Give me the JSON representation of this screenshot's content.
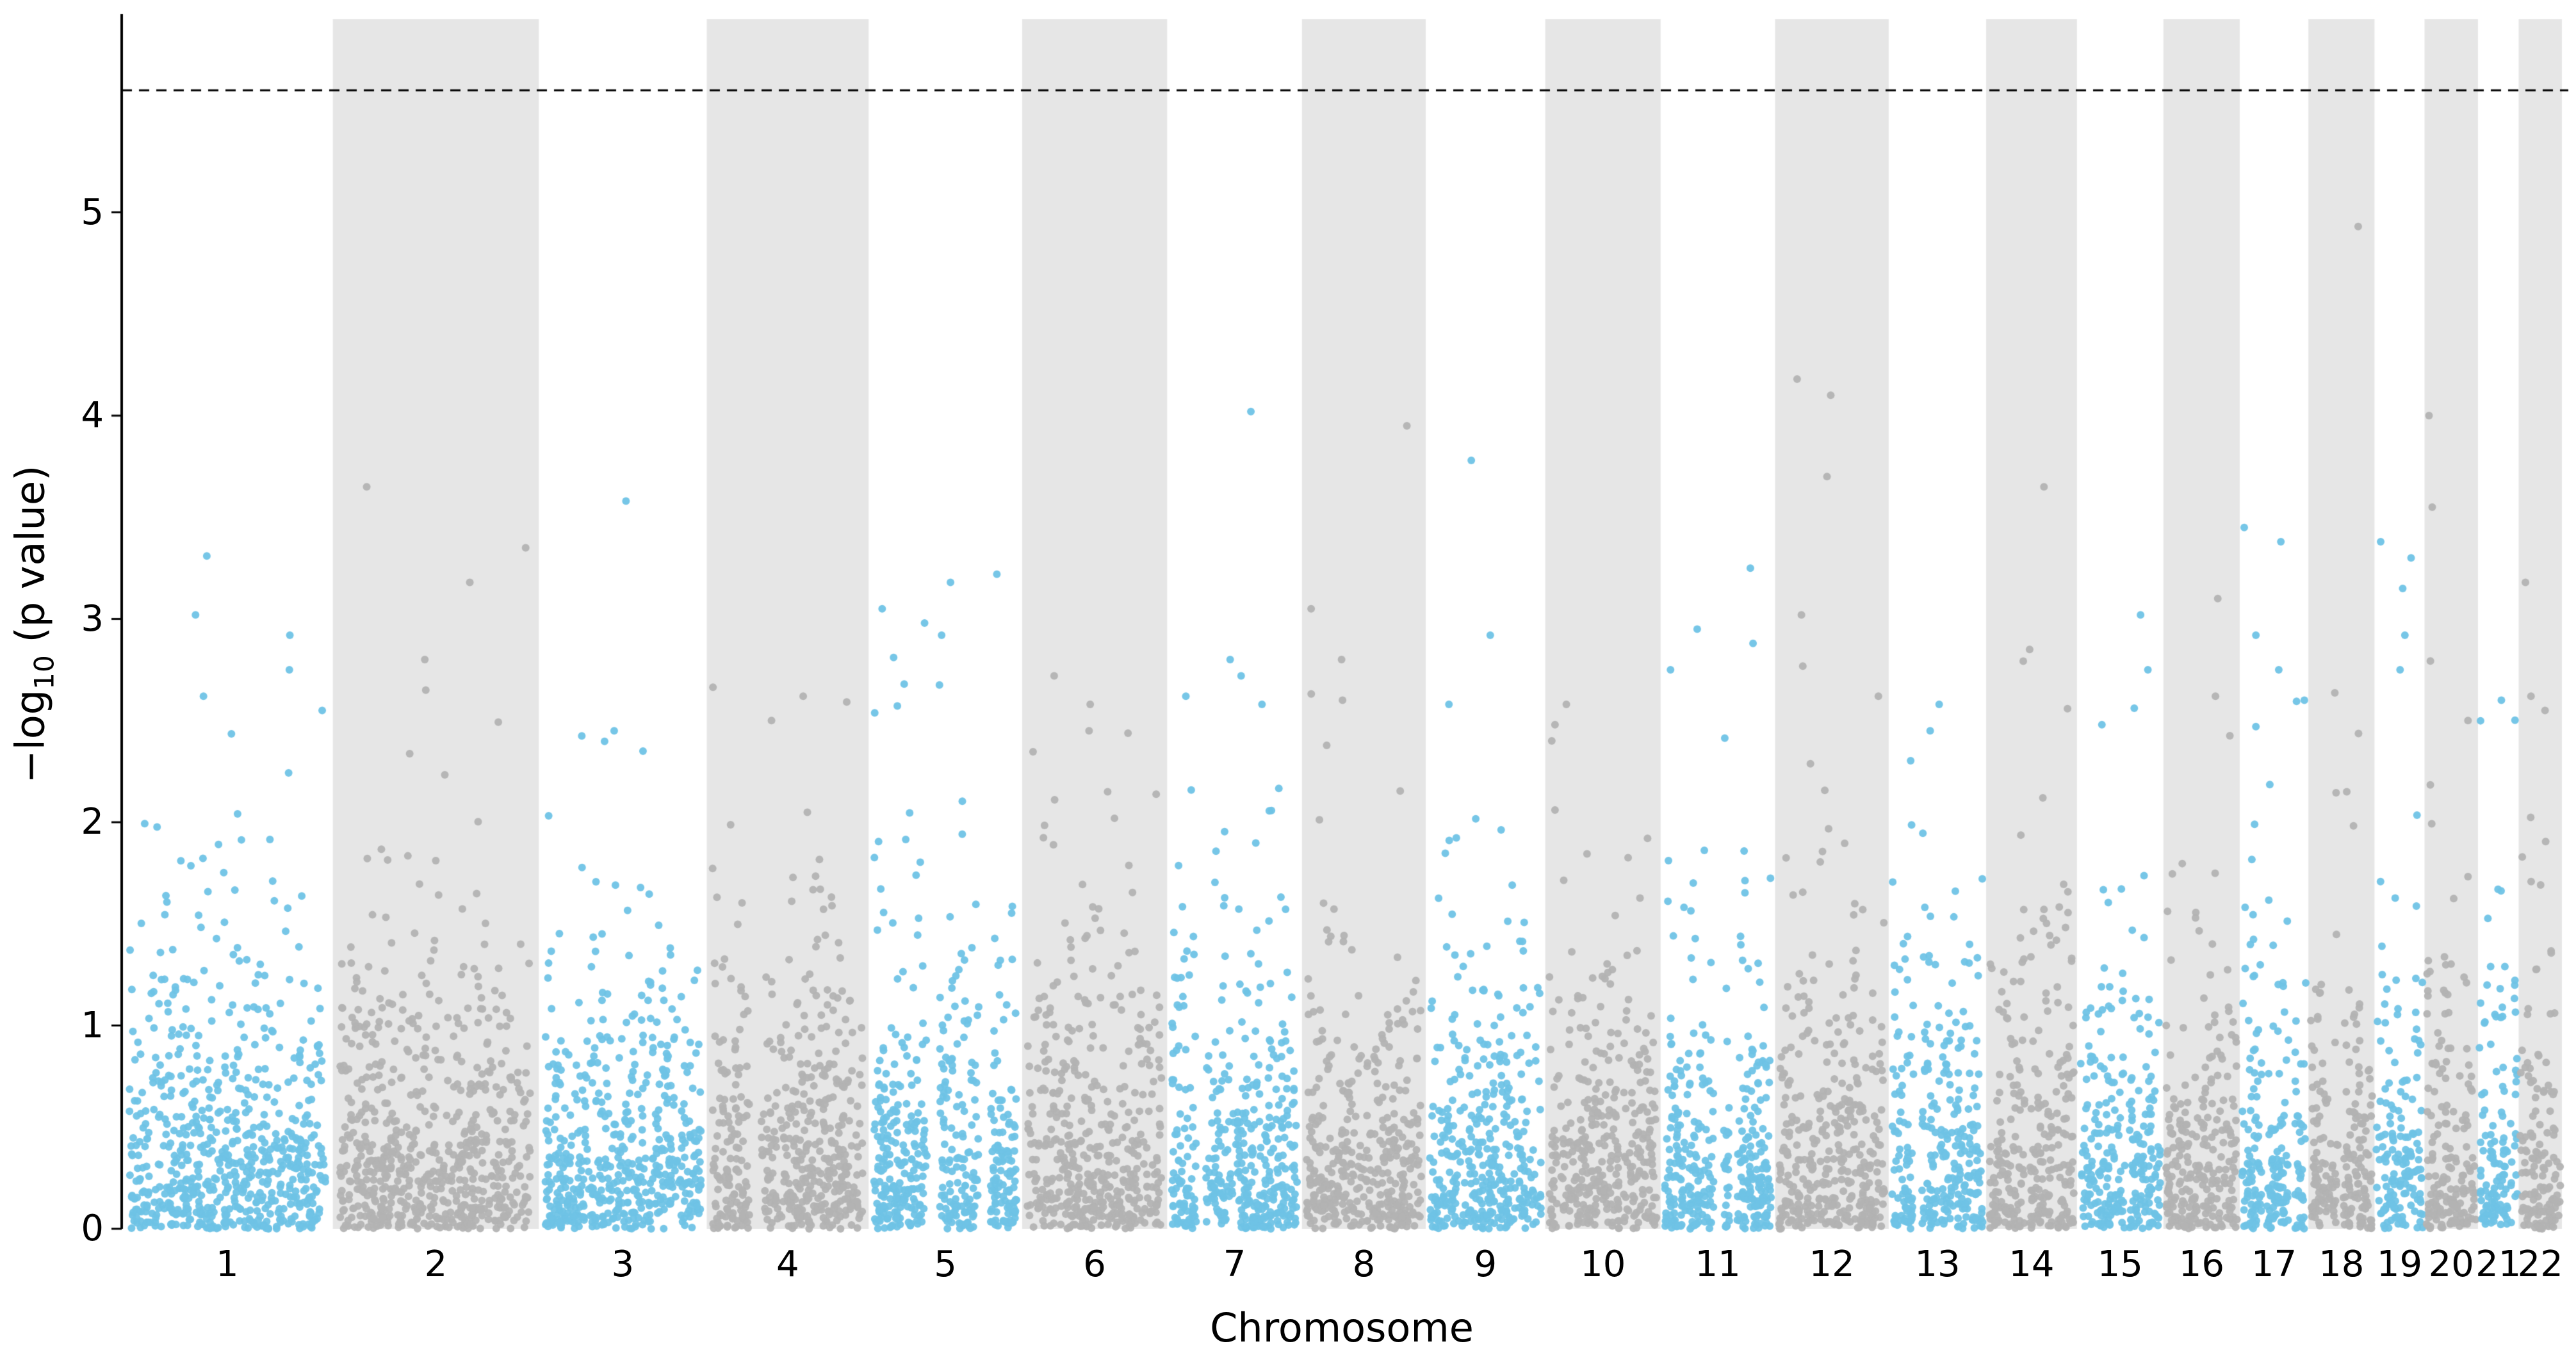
{
  "chart_data": {
    "type": "scatter",
    "variant": "manhattan",
    "title": "",
    "xlabel": "Chromosome",
    "ylabel": "−log10 (p value)",
    "ylabel_prefix": "−log",
    "ylabel_sub": "10",
    "ylabel_suffix": " (p value)",
    "ylim": [
      0,
      5.95
    ],
    "yticks": [
      "0",
      "1",
      "2",
      "3",
      "4",
      "5"
    ],
    "threshold_line": {
      "y": 5.6,
      "style": "dashed",
      "color": "#000000"
    },
    "legend": null,
    "grid": false,
    "style": {
      "odd_chrom_point_color": "#6fc3e6",
      "even_chrom_point_color": "#b3b3b3",
      "even_chrom_band_color": "#e6e6e6",
      "background_color": "#ffffff",
      "axis_color": "#000000",
      "point_radius": 6,
      "points_per_unit": 2.7,
      "seed": 1337
    },
    "chromosomes": [
      {
        "label": "1",
        "rel_width": 249,
        "notable_points": [
          3.31,
          3.02,
          2.92,
          2.75,
          2.62,
          2.55
        ]
      },
      {
        "label": "2",
        "rel_width": 243,
        "notable_points": [
          3.65,
          3.35,
          3.18,
          2.8,
          2.65
        ]
      },
      {
        "label": "3",
        "rel_width": 198,
        "notable_points": [
          3.58,
          2.45,
          2.35
        ]
      },
      {
        "label": "4",
        "rel_width": 191,
        "notable_points": [
          2.62,
          2.5
        ]
      },
      {
        "label": "5",
        "rel_width": 181,
        "notable_points": [
          3.22,
          3.18,
          3.05,
          2.98,
          2.92,
          2.68
        ]
      },
      {
        "label": "6",
        "rel_width": 171,
        "notable_points": [
          2.72,
          2.58,
          2.45
        ]
      },
      {
        "label": "7",
        "rel_width": 159,
        "notable_points": [
          4.02,
          2.8,
          2.72,
          2.62,
          2.58
        ]
      },
      {
        "label": "8",
        "rel_width": 146,
        "notable_points": [
          3.95,
          3.05,
          2.8,
          2.6
        ]
      },
      {
        "label": "9",
        "rel_width": 141,
        "notable_points": [
          3.78,
          2.92,
          2.58
        ]
      },
      {
        "label": "10",
        "rel_width": 136,
        "notable_points": [
          2.58,
          2.48,
          2.4
        ]
      },
      {
        "label": "11",
        "rel_width": 135,
        "notable_points": [
          3.25,
          2.95,
          2.88,
          2.75
        ]
      },
      {
        "label": "12",
        "rel_width": 134,
        "notable_points": [
          4.18,
          4.1,
          3.7,
          3.02,
          2.62
        ]
      },
      {
        "label": "13",
        "rel_width": 115,
        "notable_points": [
          2.58,
          2.45
        ]
      },
      {
        "label": "14",
        "rel_width": 107,
        "notable_points": [
          3.65,
          2.12
        ]
      },
      {
        "label": "15",
        "rel_width": 102,
        "notable_points": [
          3.02,
          2.75,
          2.48
        ]
      },
      {
        "label": "16",
        "rel_width": 90,
        "notable_points": [
          3.1,
          2.62
        ]
      },
      {
        "label": "17",
        "rel_width": 81,
        "notable_points": [
          3.45,
          3.38,
          2.92,
          2.75,
          2.6
        ]
      },
      {
        "label": "18",
        "rel_width": 78,
        "notable_points": [
          4.93,
          2.15
        ]
      },
      {
        "label": "19",
        "rel_width": 59,
        "notable_points": [
          3.38,
          3.3,
          3.15,
          2.92,
          2.75
        ]
      },
      {
        "label": "20",
        "rel_width": 63,
        "notable_points": [
          4.0,
          3.55,
          2.5
        ]
      },
      {
        "label": "21",
        "rel_width": 48,
        "notable_points": [
          2.6
        ]
      },
      {
        "label": "22",
        "rel_width": 51,
        "notable_points": [
          3.18,
          2.62,
          2.55
        ]
      }
    ]
  }
}
